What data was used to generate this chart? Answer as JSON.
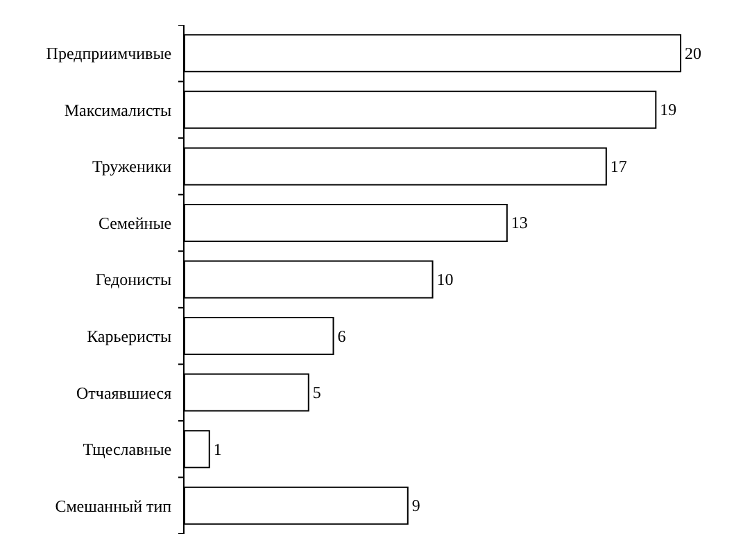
{
  "chart_data": {
    "type": "bar",
    "orientation": "horizontal",
    "categories": [
      "Предприимчивые",
      "Максималисты",
      "Труженики",
      "Семейные",
      "Гедонисты",
      "Карьеристы",
      "Отчаявшиеся",
      "Тщеславные",
      "Смешанный тип"
    ],
    "values": [
      20,
      19,
      17,
      13,
      10,
      6,
      5,
      1,
      9
    ],
    "color": "#ffffff",
    "data_labels": true
  }
}
